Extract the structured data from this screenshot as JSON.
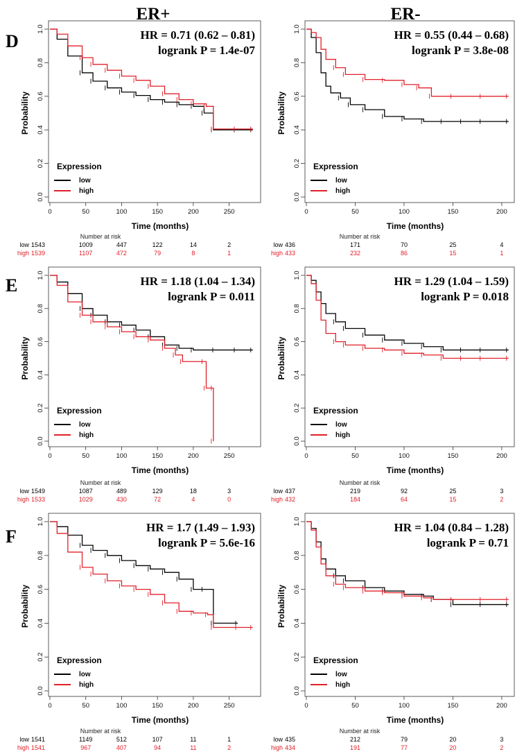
{
  "columns": [
    {
      "title": "ER+"
    },
    {
      "title": "ER-"
    }
  ],
  "legend": {
    "title": "Expression",
    "low": "low",
    "high": "high"
  },
  "risk_header": "Number at risk",
  "colors": {
    "low": "#000000",
    "high": "#e0202a"
  },
  "chart_data": [
    {
      "type": "line",
      "row": "D",
      "col": 0,
      "hr_text": "HR = 0.71 (0.62 – 0.81)",
      "p_text": "logrank P = 1.4e-07",
      "xlabel": "Time (months)",
      "ylabel": "Probability",
      "xlim": [
        0,
        290
      ],
      "ylim": [
        0,
        1
      ],
      "xticks": [
        0,
        50,
        100,
        150,
        200,
        250
      ],
      "yticks": [
        0.0,
        0.2,
        0.4,
        0.6,
        0.8,
        1.0
      ],
      "series": [
        {
          "name": "low",
          "x": [
            0,
            10,
            25,
            45,
            60,
            80,
            100,
            120,
            140,
            160,
            180,
            200,
            215,
            228,
            260,
            283
          ],
          "y": [
            1.0,
            0.94,
            0.84,
            0.74,
            0.69,
            0.65,
            0.625,
            0.605,
            0.58,
            0.565,
            0.55,
            0.54,
            0.5,
            0.4,
            0.4,
            0.4
          ]
        },
        {
          "name": "high",
          "x": [
            0,
            10,
            25,
            45,
            60,
            80,
            100,
            120,
            140,
            160,
            180,
            200,
            218,
            228,
            260,
            283
          ],
          "y": [
            1.0,
            0.97,
            0.9,
            0.83,
            0.79,
            0.755,
            0.72,
            0.695,
            0.66,
            0.615,
            0.58,
            0.555,
            0.54,
            0.405,
            0.405,
            0.405
          ]
        }
      ],
      "risk": {
        "low_label": "low",
        "high_label": "high",
        "low": [
          "1543",
          "1009",
          "447",
          "122",
          "14",
          "2"
        ],
        "high": [
          "1539",
          "1107",
          "472",
          "79",
          "8",
          "1"
        ]
      }
    },
    {
      "type": "line",
      "row": "D",
      "col": 1,
      "hr_text": "HR = 0.55 (0.44 – 0.68)",
      "p_text": "logrank P = 3.8e-08",
      "xlabel": "Time (months)",
      "ylabel": "Probability",
      "xlim": [
        0,
        210
      ],
      "ylim": [
        0,
        1
      ],
      "xticks": [
        0,
        50,
        100,
        150,
        200
      ],
      "yticks": [
        0.0,
        0.2,
        0.4,
        0.6,
        0.8,
        1.0
      ],
      "series": [
        {
          "name": "low",
          "x": [
            0,
            5,
            10,
            15,
            20,
            25,
            35,
            45,
            60,
            80,
            100,
            120,
            140,
            160,
            180,
            207
          ],
          "y": [
            1.0,
            0.95,
            0.86,
            0.74,
            0.66,
            0.62,
            0.59,
            0.55,
            0.52,
            0.48,
            0.465,
            0.45,
            0.45,
            0.45,
            0.45,
            0.45
          ]
        },
        {
          "name": "high",
          "x": [
            0,
            5,
            10,
            15,
            20,
            30,
            40,
            60,
            80,
            100,
            115,
            128,
            150,
            180,
            207
          ],
          "y": [
            1.0,
            0.98,
            0.95,
            0.88,
            0.82,
            0.77,
            0.73,
            0.7,
            0.695,
            0.67,
            0.65,
            0.6,
            0.6,
            0.6,
            0.6
          ]
        }
      ],
      "risk": {
        "low_label": "low",
        "high_label": "high",
        "low": [
          "436",
          "171",
          "70",
          "25",
          "4"
        ],
        "high": [
          "433",
          "232",
          "86",
          "15",
          "1"
        ]
      }
    },
    {
      "type": "line",
      "row": "E",
      "col": 0,
      "hr_text": "HR = 1.18 (1.04 – 1.34)",
      "p_text": "logrank P = 0.011",
      "xlabel": "Time (months)",
      "ylabel": "Probability",
      "xlim": [
        0,
        290
      ],
      "ylim": [
        0,
        1
      ],
      "xticks": [
        0,
        50,
        100,
        150,
        200,
        250
      ],
      "yticks": [
        0.0,
        0.2,
        0.4,
        0.6,
        0.8,
        1.0
      ],
      "series": [
        {
          "name": "low",
          "x": [
            0,
            10,
            25,
            45,
            60,
            80,
            100,
            120,
            140,
            160,
            180,
            200,
            230,
            260,
            283
          ],
          "y": [
            1.0,
            0.96,
            0.89,
            0.8,
            0.76,
            0.72,
            0.7,
            0.67,
            0.63,
            0.58,
            0.56,
            0.55,
            0.55,
            0.55,
            0.55
          ]
        },
        {
          "name": "high",
          "x": [
            0,
            10,
            25,
            45,
            60,
            80,
            100,
            120,
            140,
            160,
            175,
            185,
            215,
            218,
            228,
            228
          ],
          "y": [
            1.0,
            0.94,
            0.84,
            0.76,
            0.72,
            0.69,
            0.66,
            0.63,
            0.61,
            0.56,
            0.52,
            0.48,
            0.48,
            0.32,
            0.32,
            0.0
          ]
        }
      ],
      "risk": {
        "low_label": "low",
        "high_label": "high",
        "low": [
          "1549",
          "1087",
          "489",
          "129",
          "18",
          "3"
        ],
        "high": [
          "1533",
          "1029",
          "430",
          "72",
          "4",
          "0"
        ]
      }
    },
    {
      "type": "line",
      "row": "E",
      "col": 1,
      "hr_text": "HR = 1.29 (1.04 – 1.59)",
      "p_text": "logrank P = 0.018",
      "xlabel": "Time (months)",
      "ylabel": "Probability",
      "xlim": [
        0,
        210
      ],
      "ylim": [
        0,
        1
      ],
      "xticks": [
        0,
        50,
        100,
        150,
        200
      ],
      "yticks": [
        0.0,
        0.2,
        0.4,
        0.6,
        0.8,
        1.0
      ],
      "series": [
        {
          "name": "low",
          "x": [
            0,
            5,
            10,
            15,
            20,
            30,
            40,
            60,
            80,
            100,
            120,
            140,
            160,
            180,
            207
          ],
          "y": [
            1.0,
            0.97,
            0.9,
            0.83,
            0.77,
            0.72,
            0.68,
            0.64,
            0.61,
            0.59,
            0.57,
            0.55,
            0.55,
            0.55,
            0.55
          ]
        },
        {
          "name": "high",
          "x": [
            0,
            5,
            10,
            15,
            20,
            30,
            40,
            60,
            80,
            100,
            120,
            140,
            160,
            180,
            207
          ],
          "y": [
            1.0,
            0.95,
            0.85,
            0.73,
            0.65,
            0.6,
            0.58,
            0.56,
            0.55,
            0.53,
            0.52,
            0.5,
            0.5,
            0.5,
            0.5
          ]
        }
      ],
      "risk": {
        "low_label": "low",
        "high_label": "high",
        "low": [
          "437",
          "219",
          "92",
          "25",
          "3"
        ],
        "high": [
          "432",
          "184",
          "64",
          "15",
          "2"
        ]
      }
    },
    {
      "type": "line",
      "row": "F",
      "col": 0,
      "hr_text": "HR = 1.7 (1.49 – 1.93)",
      "p_text": "logrank P = 5.6e-16",
      "xlabel": "Time (months)",
      "ylabel": "Probability",
      "xlim": [
        0,
        290
      ],
      "ylim": [
        0,
        1
      ],
      "xticks": [
        0,
        50,
        100,
        150,
        200,
        250
      ],
      "yticks": [
        0.0,
        0.2,
        0.4,
        0.6,
        0.8,
        1.0
      ],
      "series": [
        {
          "name": "low",
          "x": [
            0,
            10,
            25,
            45,
            60,
            80,
            100,
            120,
            140,
            160,
            180,
            200,
            215,
            228,
            262
          ],
          "y": [
            1.0,
            0.97,
            0.92,
            0.86,
            0.83,
            0.8,
            0.77,
            0.74,
            0.72,
            0.7,
            0.66,
            0.6,
            0.6,
            0.4,
            0.4
          ]
        },
        {
          "name": "high",
          "x": [
            0,
            10,
            25,
            45,
            60,
            80,
            100,
            120,
            140,
            160,
            180,
            200,
            220,
            228,
            262,
            283
          ],
          "y": [
            1.0,
            0.93,
            0.82,
            0.73,
            0.69,
            0.65,
            0.62,
            0.6,
            0.57,
            0.52,
            0.47,
            0.46,
            0.45,
            0.375,
            0.375,
            0.375
          ]
        }
      ],
      "risk": {
        "low_label": "low",
        "high_label": "high",
        "low": [
          "1541",
          "1149",
          "512",
          "107",
          "11",
          "1"
        ],
        "high": [
          "1541",
          "967",
          "407",
          "94",
          "11",
          "2"
        ]
      }
    },
    {
      "type": "line",
      "row": "F",
      "col": 1,
      "hr_text": "HR = 1.04 (0.84 – 1.28)",
      "p_text": "logrank P = 0.71",
      "xlabel": "Time (months)",
      "ylabel": "Probability",
      "xlim": [
        0,
        210
      ],
      "ylim": [
        0,
        1
      ],
      "xticks": [
        0,
        50,
        100,
        150,
        200
      ],
      "yticks": [
        0.0,
        0.2,
        0.4,
        0.6,
        0.8,
        1.0
      ],
      "series": [
        {
          "name": "low",
          "x": [
            0,
            5,
            10,
            15,
            20,
            30,
            40,
            60,
            80,
            100,
            120,
            130,
            150,
            180,
            207
          ],
          "y": [
            1.0,
            0.96,
            0.88,
            0.78,
            0.72,
            0.68,
            0.65,
            0.61,
            0.59,
            0.57,
            0.56,
            0.54,
            0.51,
            0.51,
            0.51
          ]
        },
        {
          "name": "high",
          "x": [
            0,
            5,
            10,
            15,
            20,
            30,
            40,
            60,
            80,
            100,
            120,
            130,
            150,
            180,
            207
          ],
          "y": [
            1.0,
            0.95,
            0.85,
            0.75,
            0.68,
            0.63,
            0.61,
            0.59,
            0.58,
            0.56,
            0.55,
            0.54,
            0.54,
            0.54,
            0.54
          ]
        }
      ],
      "risk": {
        "low_label": "low",
        "high_label": "high",
        "low": [
          "435",
          "212",
          "79",
          "20",
          "3"
        ],
        "high": [
          "434",
          "191",
          "77",
          "20",
          "2"
        ]
      }
    }
  ]
}
